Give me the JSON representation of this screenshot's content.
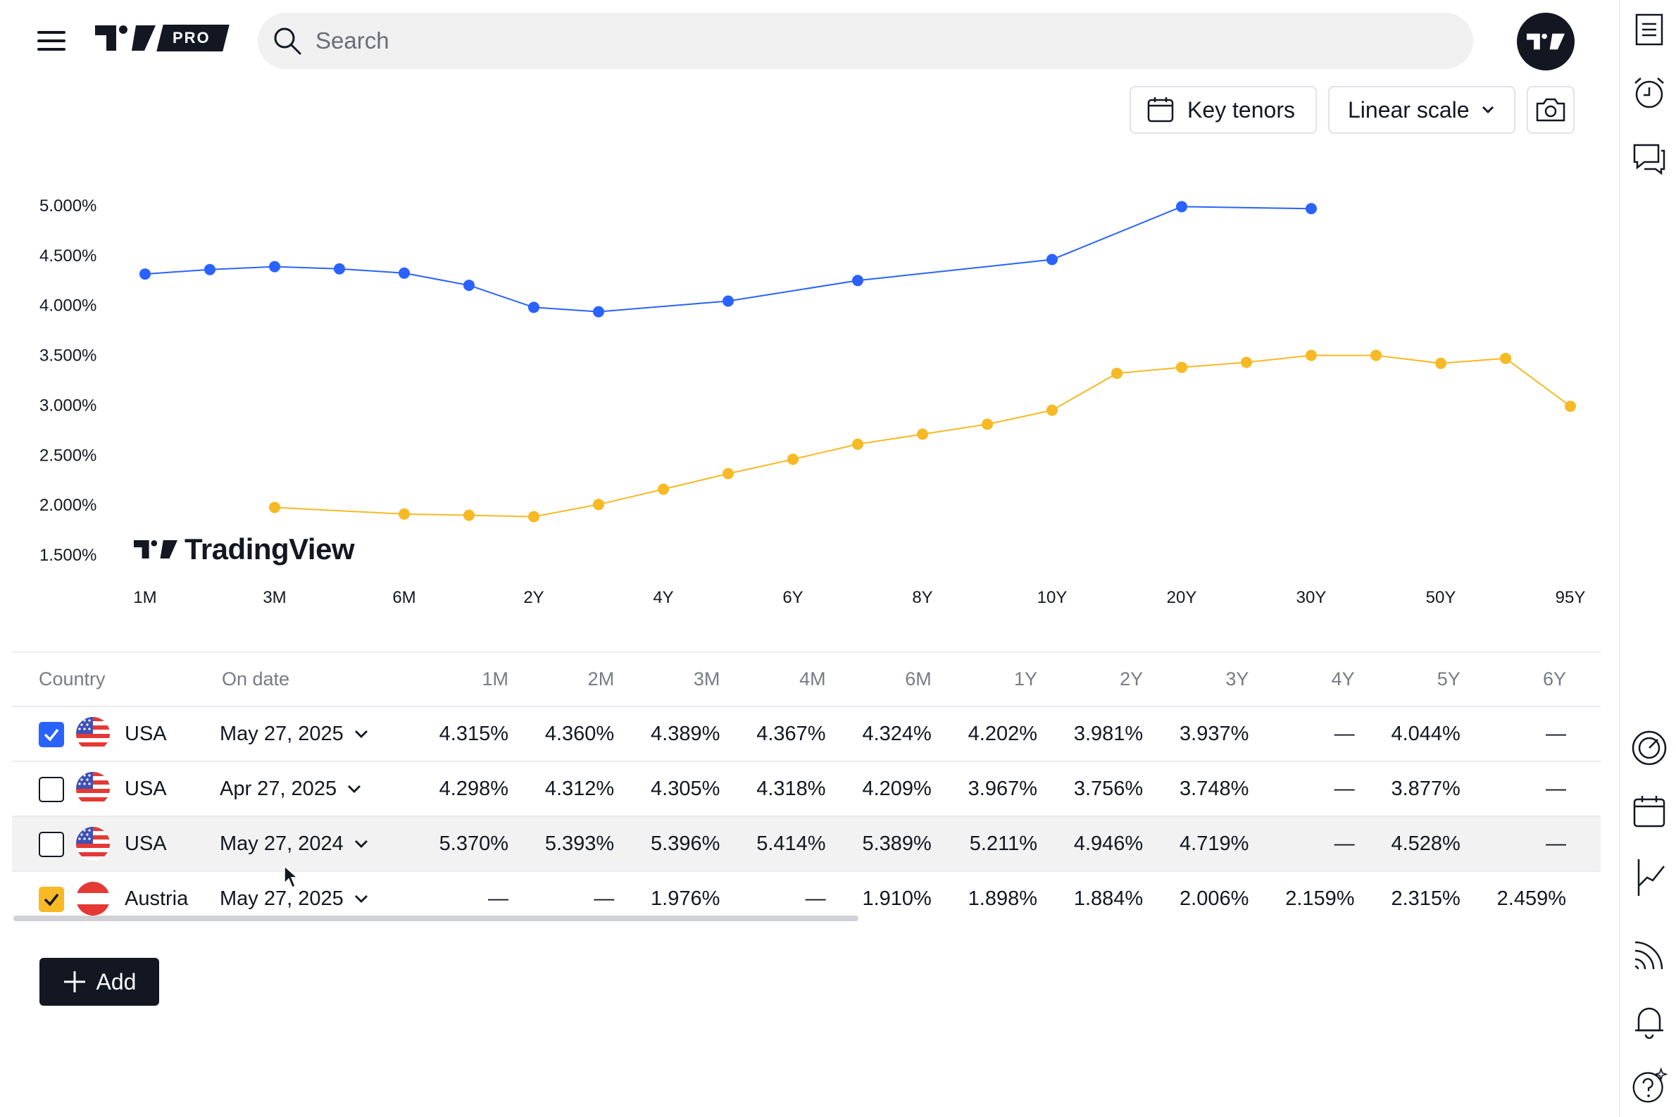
{
  "search": {
    "placeholder": "Search"
  },
  "logo": {
    "badge": "PRO"
  },
  "toolbar": {
    "key_tenors_label": "Key tenors",
    "scale_label": "Linear scale"
  },
  "watermark": "TradingView",
  "colors": {
    "usa_series": "#2962ff",
    "austria_series": "#f7b924",
    "accent": "#2962ff",
    "dark": "#131722"
  },
  "chart_data": {
    "type": "line",
    "x_tick_labels": [
      "1M",
      "3M",
      "6M",
      "2Y",
      "4Y",
      "6Y",
      "8Y",
      "10Y",
      "20Y",
      "30Y",
      "50Y",
      "95Y"
    ],
    "y_tick_labels": [
      "5.000%",
      "4.500%",
      "4.000%",
      "3.500%",
      "3.000%",
      "2.500%",
      "2.000%",
      "1.500%"
    ],
    "ylim": [
      1.5,
      5.0
    ],
    "y_ticks": [
      5.0,
      4.5,
      4.0,
      3.5,
      3.0,
      2.5,
      2.0,
      1.5
    ],
    "tenor_slots": 23,
    "series": [
      {
        "color": "#2962ff",
        "points": [
          [
            0,
            4.315
          ],
          [
            1,
            4.36
          ],
          [
            2,
            4.389
          ],
          [
            3,
            4.367
          ],
          [
            4,
            4.324
          ],
          [
            5,
            4.202
          ],
          [
            6,
            3.981
          ],
          [
            7,
            3.937
          ],
          [
            9,
            4.044
          ],
          [
            11,
            4.25
          ],
          [
            14,
            4.46
          ],
          [
            16,
            4.99
          ],
          [
            18,
            4.97
          ]
        ]
      },
      {
        "color": "#f7b924",
        "points": [
          [
            2,
            1.976
          ],
          [
            4,
            1.91
          ],
          [
            5,
            1.898
          ],
          [
            6,
            1.884
          ],
          [
            7,
            2.006
          ],
          [
            8,
            2.159
          ],
          [
            9,
            2.315
          ],
          [
            10,
            2.459
          ],
          [
            11,
            2.61
          ],
          [
            12,
            2.71
          ],
          [
            13,
            2.81
          ],
          [
            14,
            2.95
          ],
          [
            15,
            3.32
          ],
          [
            16,
            3.38
          ],
          [
            17,
            3.43
          ],
          [
            18,
            3.5
          ],
          [
            19,
            3.5
          ],
          [
            20,
            3.42
          ],
          [
            21,
            3.47
          ],
          [
            22,
            2.99
          ]
        ]
      }
    ]
  },
  "table": {
    "headers": [
      "Country",
      "On date",
      "1M",
      "2M",
      "3M",
      "4M",
      "6M",
      "1Y",
      "2Y",
      "3Y",
      "4Y",
      "5Y",
      "6Y"
    ],
    "rows": [
      {
        "country": "USA",
        "date": "May 27, 2025",
        "checked": true,
        "check_color": "#2962ff",
        "values": [
          "4.315%",
          "4.360%",
          "4.389%",
          "4.367%",
          "4.324%",
          "4.202%",
          "3.981%",
          "3.937%",
          "—",
          "4.044%",
          "—"
        ]
      },
      {
        "country": "USA",
        "date": "Apr 27, 2025",
        "checked": false,
        "values": [
          "4.298%",
          "4.312%",
          "4.305%",
          "4.318%",
          "4.209%",
          "3.967%",
          "3.756%",
          "3.748%",
          "—",
          "3.877%",
          "—"
        ]
      },
      {
        "country": "USA",
        "date": "May 27, 2024",
        "checked": false,
        "values": [
          "5.370%",
          "5.393%",
          "5.396%",
          "5.414%",
          "5.389%",
          "5.211%",
          "4.946%",
          "4.719%",
          "—",
          "4.528%",
          "—"
        ]
      },
      {
        "country": "Austria",
        "date": "May 27, 2025",
        "checked": true,
        "check_color": "#f7b924",
        "values": [
          "—",
          "—",
          "1.976%",
          "—",
          "1.910%",
          "1.898%",
          "1.884%",
          "2.006%",
          "2.159%",
          "2.315%",
          "2.459%"
        ]
      }
    ]
  },
  "add_button": {
    "label": "Add"
  },
  "icons": {
    "sidebar": [
      "watchlist-icon",
      "alarm-clock-icon",
      "chat-icon",
      "speedometer-icon",
      "calendar-icon",
      "trendline-icon",
      "broadcast-icon",
      "bell-icon",
      "help-icon"
    ]
  }
}
